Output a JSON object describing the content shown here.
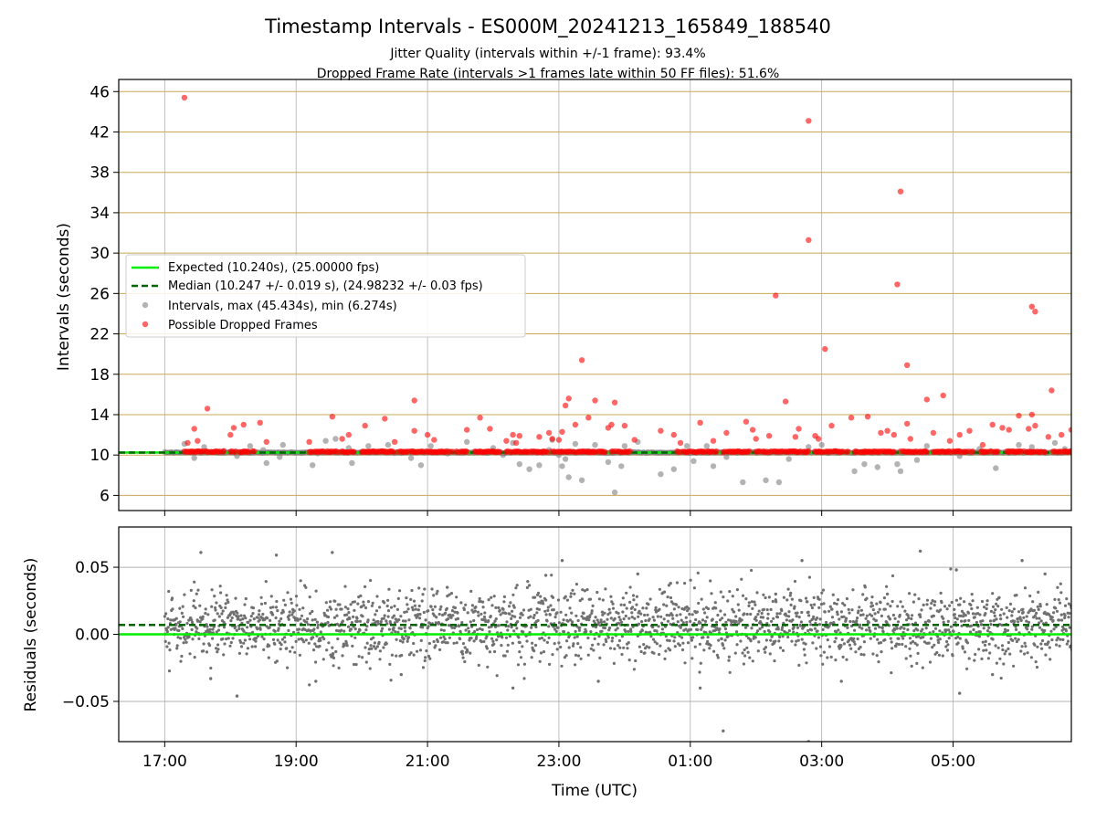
{
  "chart_data": [
    {
      "type": "scatter",
      "title": "Timestamp Intervals - ES000M_20241213_165849_188540",
      "subtitle_lines": [
        "Jitter Quality (intervals within +/-1 frame): 93.4%",
        "Dropped Frame Rate (intervals >1 frames late within 50 FF files): 51.6%"
      ],
      "xlabel": "",
      "ylabel": "Intervals (seconds)",
      "x_unit": "hours since 17:00 UTC",
      "xlim": [
        -0.7,
        13.8
      ],
      "ylim": [
        4.5,
        47.2
      ],
      "yticks": [
        6,
        10,
        14,
        18,
        22,
        26,
        30,
        34,
        38,
        42,
        46
      ],
      "xticks": [
        {
          "x": 0,
          "label": "17:00"
        },
        {
          "x": 2,
          "label": "19:00"
        },
        {
          "x": 4,
          "label": "21:00"
        },
        {
          "x": 6,
          "label": "23:00"
        },
        {
          "x": 8,
          "label": "01:00"
        },
        {
          "x": 10,
          "label": "03:00"
        },
        {
          "x": 12,
          "label": "05:00"
        }
      ],
      "grid": {
        "horizontal": true,
        "horizontal_color": "#c8a850",
        "vertical": true
      },
      "legend_position": "center-left",
      "expected_interval": 10.24,
      "median_interval": 10.247,
      "series": [
        {
          "name": "Expected (10.240s), (25.00000 fps)",
          "kind": "line",
          "color": "#00ee00",
          "style": "solid",
          "y": 10.24
        },
        {
          "name": "Median (10.247 +/- 0.019 s), (24.98232 +/- 0.03 fps)",
          "kind": "line",
          "color": "#006400",
          "style": "dashed",
          "y": 10.247
        },
        {
          "name": "Intervals, max (45.434s), min (6.274s)",
          "kind": "scatter",
          "color": "#808080",
          "points": [
            [
              0.3,
              11.1
            ],
            [
              0.45,
              9.7
            ],
            [
              0.6,
              10.8
            ],
            [
              0.9,
              10.4
            ],
            [
              1.1,
              9.9
            ],
            [
              1.3,
              10.9
            ],
            [
              1.5,
              10.5
            ],
            [
              1.55,
              9.2
            ],
            [
              1.75,
              9.8
            ],
            [
              1.8,
              11.0
            ],
            [
              2.25,
              9.0
            ],
            [
              2.45,
              11.4
            ],
            [
              2.6,
              11.6
            ],
            [
              2.8,
              10.7
            ],
            [
              2.85,
              9.2
            ],
            [
              3.1,
              10.9
            ],
            [
              3.4,
              11.0
            ],
            [
              3.6,
              10.2
            ],
            [
              3.75,
              9.7
            ],
            [
              3.9,
              9.0
            ],
            [
              4.05,
              10.9
            ],
            [
              4.3,
              10.4
            ],
            [
              4.6,
              11.3
            ],
            [
              4.9,
              10.2
            ],
            [
              5.0,
              10.7
            ],
            [
              5.15,
              10.0
            ],
            [
              5.3,
              11.2
            ],
            [
              5.4,
              9.1
            ],
            [
              5.55,
              8.6
            ],
            [
              5.7,
              9.0
            ],
            [
              5.85,
              10.5
            ],
            [
              5.9,
              11.5
            ],
            [
              6.0,
              10.0
            ],
            [
              6.05,
              8.9
            ],
            [
              6.1,
              9.6
            ],
            [
              6.15,
              7.8
            ],
            [
              6.25,
              11.1
            ],
            [
              6.35,
              7.5
            ],
            [
              6.45,
              10.4
            ],
            [
              6.55,
              11.0
            ],
            [
              6.75,
              9.3
            ],
            [
              6.85,
              6.3
            ],
            [
              6.95,
              8.9
            ],
            [
              7.0,
              10.9
            ],
            [
              7.2,
              11.3
            ],
            [
              7.55,
              8.1
            ],
            [
              7.75,
              8.6
            ],
            [
              7.95,
              10.9
            ],
            [
              8.05,
              9.4
            ],
            [
              8.25,
              10.9
            ],
            [
              8.35,
              8.9
            ],
            [
              8.55,
              9.8
            ],
            [
              8.8,
              7.3
            ],
            [
              9.15,
              7.5
            ],
            [
              9.35,
              7.3
            ],
            [
              9.5,
              9.6
            ],
            [
              9.8,
              10.8
            ],
            [
              10.0,
              11.0
            ],
            [
              10.2,
              10.4
            ],
            [
              10.5,
              8.4
            ],
            [
              10.65,
              9.1
            ],
            [
              10.85,
              8.8
            ],
            [
              11.15,
              9.1
            ],
            [
              11.2,
              8.4
            ],
            [
              11.45,
              9.5
            ],
            [
              11.6,
              10.9
            ],
            [
              11.8,
              10.3
            ],
            [
              12.1,
              9.9
            ],
            [
              12.4,
              10.6
            ],
            [
              12.65,
              8.7
            ],
            [
              12.85,
              10.4
            ],
            [
              13.0,
              11.0
            ],
            [
              13.2,
              10.8
            ],
            [
              13.4,
              10.2
            ],
            [
              13.55,
              11.2
            ],
            [
              13.7,
              10.6
            ]
          ]
        },
        {
          "name": "Possible Dropped Frames",
          "kind": "scatter",
          "color": "#ff0000",
          "points": [
            [
              0.3,
              45.4
            ],
            [
              0.35,
              11.2
            ],
            [
              0.45,
              12.6
            ],
            [
              0.5,
              11.4
            ],
            [
              0.65,
              14.6
            ],
            [
              0.9,
              10.4
            ],
            [
              1.0,
              12.0
            ],
            [
              1.05,
              12.7
            ],
            [
              1.2,
              13.0
            ],
            [
              1.45,
              13.2
            ],
            [
              1.55,
              11.3
            ],
            [
              2.2,
              11.3
            ],
            [
              2.55,
              13.8
            ],
            [
              2.7,
              11.6
            ],
            [
              2.8,
              12.0
            ],
            [
              3.05,
              12.9
            ],
            [
              3.35,
              13.6
            ],
            [
              3.5,
              11.3
            ],
            [
              3.8,
              15.4
            ],
            [
              3.8,
              12.4
            ],
            [
              4.0,
              12.0
            ],
            [
              4.1,
              11.5
            ],
            [
              4.6,
              12.5
            ],
            [
              4.8,
              13.7
            ],
            [
              4.95,
              12.6
            ],
            [
              5.2,
              11.4
            ],
            [
              5.3,
              12.0
            ],
            [
              5.35,
              11.2
            ],
            [
              5.4,
              11.9
            ],
            [
              5.7,
              11.8
            ],
            [
              5.85,
              12.2
            ],
            [
              5.9,
              11.6
            ],
            [
              6.0,
              11.5
            ],
            [
              6.05,
              12.3
            ],
            [
              6.1,
              14.9
            ],
            [
              6.15,
              15.6
            ],
            [
              6.25,
              13.0
            ],
            [
              6.35,
              19.4
            ],
            [
              6.45,
              13.7
            ],
            [
              6.55,
              15.4
            ],
            [
              6.75,
              12.7
            ],
            [
              6.8,
              13.0
            ],
            [
              6.85,
              15.2
            ],
            [
              7.0,
              12.9
            ],
            [
              7.15,
              11.5
            ],
            [
              7.55,
              12.4
            ],
            [
              7.75,
              12.0
            ],
            [
              7.85,
              11.2
            ],
            [
              8.15,
              13.2
            ],
            [
              8.35,
              11.4
            ],
            [
              8.55,
              12.2
            ],
            [
              8.85,
              13.3
            ],
            [
              8.95,
              12.5
            ],
            [
              9.0,
              11.6
            ],
            [
              9.2,
              11.9
            ],
            [
              9.3,
              25.8
            ],
            [
              9.45,
              15.3
            ],
            [
              9.6,
              11.8
            ],
            [
              9.8,
              43.1
            ],
            [
              9.8,
              31.3
            ],
            [
              9.9,
              11.9
            ],
            [
              10.05,
              20.5
            ],
            [
              10.15,
              12.9
            ],
            [
              10.45,
              13.7
            ],
            [
              10.7,
              13.8
            ],
            [
              10.9,
              12.2
            ],
            [
              11.0,
              12.4
            ],
            [
              11.1,
              12.0
            ],
            [
              11.15,
              26.9
            ],
            [
              11.2,
              36.1
            ],
            [
              11.3,
              18.9
            ],
            [
              11.3,
              13.1
            ],
            [
              11.35,
              11.6
            ],
            [
              11.6,
              15.5
            ],
            [
              11.7,
              12.2
            ],
            [
              11.85,
              15.9
            ],
            [
              11.95,
              11.4
            ],
            [
              12.1,
              12.0
            ],
            [
              12.25,
              12.4
            ],
            [
              12.45,
              11.0
            ],
            [
              12.6,
              13.0
            ],
            [
              12.75,
              12.7
            ],
            [
              12.85,
              12.5
            ],
            [
              13.0,
              13.9
            ],
            [
              13.15,
              12.6
            ],
            [
              13.2,
              24.7
            ],
            [
              13.25,
              24.2
            ],
            [
              13.2,
              14.0
            ],
            [
              13.25,
              12.9
            ],
            [
              13.45,
              11.8
            ],
            [
              13.5,
              16.4
            ],
            [
              13.65,
              12.0
            ],
            [
              13.8,
              12.5
            ],
            [
              14.0,
              14.0
            ],
            [
              14.1,
              13.9
            ],
            [
              14.3,
              11.4
            ],
            [
              14.45,
              12.4
            ],
            [
              14.8,
              13.4
            ],
            [
              9.95,
              11.6
            ],
            [
              9.65,
              12.6
            ]
          ]
        }
      ]
    },
    {
      "type": "scatter",
      "title": "",
      "xlabel": "Time (UTC)",
      "ylabel": "Residuals (seconds)",
      "x_unit": "hours since 17:00 UTC",
      "xlim": [
        -0.7,
        13.8
      ],
      "ylim": [
        -0.08,
        0.08
      ],
      "yticks": [
        {
          "y": -0.05,
          "label": "−0.05"
        },
        {
          "y": 0.0,
          "label": "0.00"
        },
        {
          "y": 0.05,
          "label": "0.05"
        }
      ],
      "grid": {
        "horizontal": true,
        "vertical": true
      },
      "residual_spread_sd": 0.013,
      "median_offset": 0.007,
      "series": [
        {
          "name": "",
          "kind": "line",
          "color": "#00ee00",
          "style": "solid",
          "y": 0.0
        },
        {
          "name": "",
          "kind": "line",
          "color": "#006400",
          "style": "dashed",
          "y": 0.007
        },
        {
          "name": "",
          "kind": "scatter",
          "color": "#707070",
          "points": [
            [
              0.55,
              0.061
            ],
            [
              1.7,
              0.059
            ],
            [
              2.55,
              0.061
            ],
            [
              5.3,
              -0.04
            ],
            [
              5.8,
              0.044
            ],
            [
              6.05,
              0.055
            ],
            [
              7.7,
              0.038
            ],
            [
              8.15,
              -0.04
            ],
            [
              8.5,
              -0.072
            ],
            [
              9.8,
              -0.08
            ],
            [
              9.7,
              0.055
            ],
            [
              11.5,
              0.062
            ],
            [
              12.05,
              0.048
            ],
            [
              12.1,
              -0.044
            ],
            [
              13.05,
              0.055
            ],
            [
              13.4,
              0.045
            ],
            [
              1.1,
              -0.046
            ],
            [
              0.7,
              -0.033
            ],
            [
              3.6,
              -0.03
            ],
            [
              4.3,
              0.035
            ],
            [
              6.6,
              -0.035
            ],
            [
              7.2,
              0.045
            ],
            [
              10.3,
              -0.035
            ],
            [
              12.6,
              -0.03
            ],
            [
              2.3,
              -0.035
            ],
            [
              9.3,
              0.03
            ],
            [
              11.0,
              0.03
            ]
          ]
        }
      ]
    }
  ]
}
